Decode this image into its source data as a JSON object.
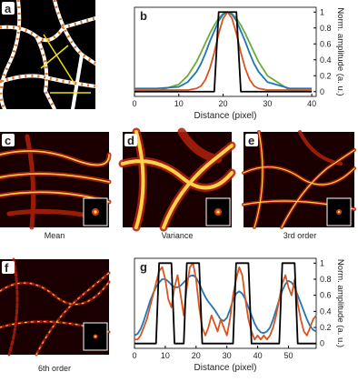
{
  "panels": [
    {
      "label": "a"
    },
    {
      "label": "c",
      "caption": "Mean"
    },
    {
      "label": "d",
      "caption": "Variance"
    },
    {
      "label": "e",
      "caption": "3rd order"
    },
    {
      "label": "f",
      "caption": "6th order"
    }
  ],
  "chart_data": [
    {
      "type": "line",
      "label": "b",
      "xlabel": "Distance (pixel)",
      "ylabel": "Norm. amplitude (a. u.)",
      "x": [
        0,
        5,
        10,
        12,
        14,
        15,
        16,
        17,
        18,
        19,
        20,
        21,
        22,
        23,
        24,
        25,
        26,
        27,
        28,
        30,
        35,
        40
      ],
      "series": [
        {
          "color": "#6aab3a",
          "values": [
            0,
            0.006,
            0.09,
            0.2,
            0.375,
            0.49,
            0.61,
            0.73,
            0.835,
            0.92,
            0.98,
            1,
            0.98,
            0.92,
            0.835,
            0.73,
            0.61,
            0.49,
            0.375,
            0.2,
            0.02,
            0
          ]
        },
        {
          "color": "#1f77b4",
          "values": [
            0.04,
            0.04,
            0.06,
            0.12,
            0.25,
            0.35,
            0.48,
            0.63,
            0.76,
            0.89,
            0.97,
            1,
            0.97,
            0.89,
            0.76,
            0.63,
            0.48,
            0.35,
            0.25,
            0.12,
            0.04,
            0.04
          ]
        },
        {
          "color": "#d9541e",
          "values": [
            0.02,
            0.02,
            0.02,
            0.02,
            0.04,
            0.07,
            0.15,
            0.29,
            0.49,
            0.73,
            0.92,
            1,
            0.92,
            0.73,
            0.49,
            0.29,
            0.15,
            0.07,
            0.04,
            0.02,
            0.02,
            0.02
          ]
        },
        {
          "color": "#000000",
          "values": [
            0,
            0,
            0,
            0,
            0,
            0,
            0,
            0,
            0,
            1,
            1,
            1,
            1,
            1,
            0,
            0,
            0,
            0,
            0,
            0,
            0,
            0
          ]
        }
      ],
      "xlim": [
        0,
        41
      ],
      "xticks": [
        0,
        10,
        20,
        30,
        40
      ],
      "ylim": [
        -0.06,
        1.06
      ],
      "yticks": [
        0,
        0.2,
        0.4,
        0.6,
        0.8,
        1
      ]
    },
    {
      "type": "line",
      "label": "g",
      "xlabel": "Distance (pixel)",
      "ylabel": "Norm. amplitude (a. u.)",
      "x": [
        0,
        1,
        2,
        3,
        4,
        5,
        6,
        7,
        8,
        9,
        10,
        11,
        12,
        13,
        14,
        15,
        16,
        17,
        18,
        19,
        20,
        21,
        22,
        23,
        24,
        25,
        26,
        27,
        28,
        29,
        30,
        31,
        32,
        33,
        34,
        35,
        36,
        37,
        38,
        39,
        40,
        41,
        42,
        43,
        44,
        45,
        46,
        47,
        48,
        49,
        50,
        51,
        52,
        53,
        54,
        55,
        56,
        57,
        58,
        59
      ],
      "series": [
        {
          "color": "#1f77b4",
          "values": [
            0.1,
            0.12,
            0.18,
            0.28,
            0.4,
            0.52,
            0.62,
            0.7,
            0.76,
            0.8,
            0.8,
            0.77,
            0.73,
            0.7,
            0.7,
            0.72,
            0.76,
            0.8,
            0.84,
            0.85,
            0.82,
            0.75,
            0.66,
            0.58,
            0.52,
            0.47,
            0.42,
            0.36,
            0.3,
            0.28,
            0.32,
            0.42,
            0.54,
            0.62,
            0.65,
            0.62,
            0.55,
            0.45,
            0.35,
            0.25,
            0.18,
            0.14,
            0.13,
            0.15,
            0.2,
            0.3,
            0.42,
            0.55,
            0.66,
            0.74,
            0.78,
            0.76,
            0.7,
            0.6,
            0.5,
            0.4,
            0.3,
            0.22,
            0.17,
            0.15
          ]
        },
        {
          "color": "#d9541e",
          "values": [
            0.05,
            0.05,
            0.1,
            0.2,
            0.3,
            0.45,
            0.6,
            0.75,
            0.9,
            0.95,
            0.8,
            0.55,
            0.45,
            0.7,
            0.85,
            0.6,
            0.35,
            0.7,
            0.95,
            1,
            0.8,
            0.45,
            0.2,
            0.1,
            0.2,
            0.35,
            0.25,
            0.15,
            0.3,
            0.2,
            0.1,
            0.3,
            0.6,
            0.8,
            0.95,
            0.85,
            0.55,
            0.3,
            0.15,
            0.05,
            0.1,
            0.05,
            0.1,
            0.05,
            0.1,
            0.2,
            0.35,
            0.55,
            0.75,
            0.85,
            0.7,
            0.6,
            0.8,
            0.5,
            0.3,
            0.15,
            0.1,
            0.2,
            0.3,
            0.35
          ]
        },
        {
          "color": "#000000",
          "values": [
            0,
            0,
            0,
            0,
            0,
            0,
            0,
            0,
            1,
            1,
            1,
            1,
            1,
            0,
            0,
            0,
            0,
            1,
            1,
            1,
            1,
            1,
            0,
            0,
            0,
            0,
            0,
            0,
            0,
            0,
            0,
            0,
            0,
            1,
            1,
            1,
            1,
            1,
            0,
            0,
            0,
            0,
            0,
            0,
            0,
            0,
            0,
            0,
            1,
            1,
            1,
            1,
            1,
            0,
            0,
            0,
            0,
            0,
            0,
            0
          ]
        }
      ],
      "xlim": [
        0,
        59
      ],
      "xticks": [
        0,
        10,
        20,
        30,
        40,
        50
      ],
      "ylim": [
        -0.06,
        1.06
      ],
      "yticks": [
        0,
        0.2,
        0.4,
        0.6,
        0.8,
        1
      ]
    }
  ]
}
